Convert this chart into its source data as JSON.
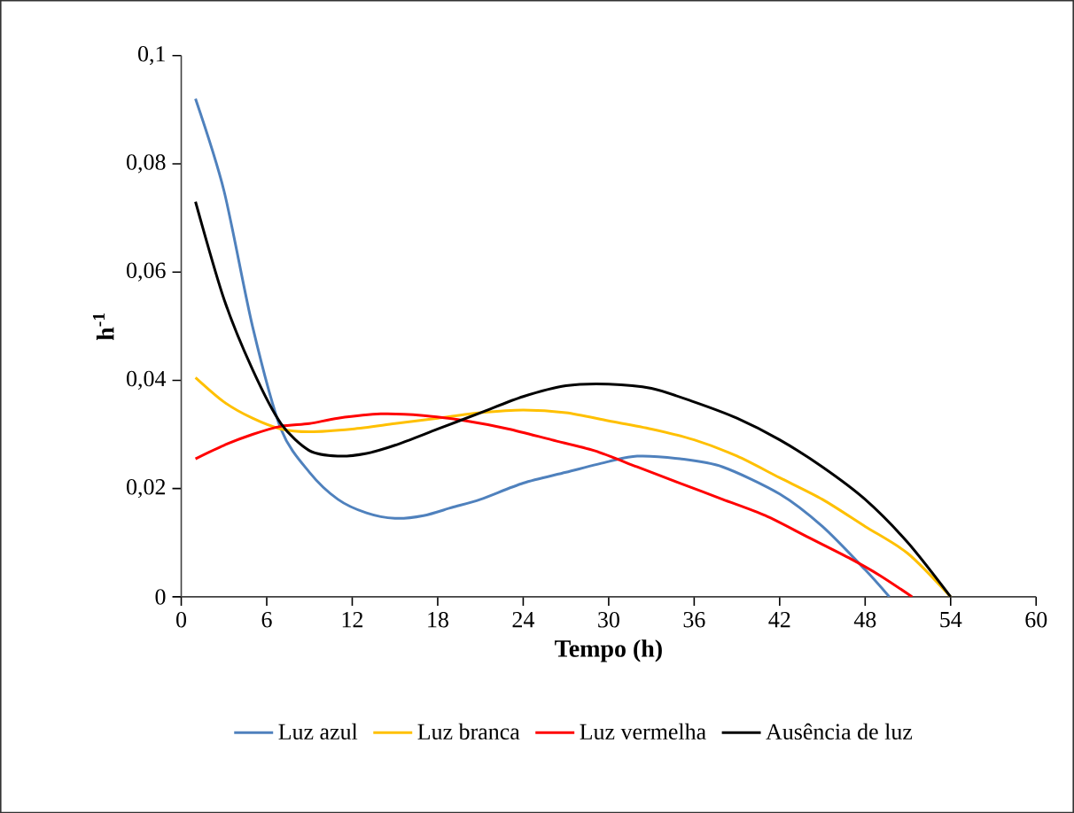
{
  "chart_data": {
    "type": "line",
    "xlabel": "Tempo (h)",
    "ylabel": "h$^{-1}$",
    "xlim": [
      0,
      60
    ],
    "xticks": [
      0,
      6,
      12,
      18,
      24,
      30,
      36,
      42,
      48,
      54,
      60
    ],
    "ylim": [
      0,
      0.1
    ],
    "yticks": [
      0,
      {
        "value": 0.02,
        "label": "0,02"
      },
      {
        "value": 0.04,
        "label": "0,04"
      },
      {
        "value": 0.06,
        "label": "0,06"
      },
      {
        "value": 0.08,
        "label": "0,08"
      },
      {
        "value": 0.1,
        "label": "0,1"
      }
    ],
    "grid": false,
    "legend": "bottom",
    "marker": "none",
    "line_style": "solid",
    "series": [
      {
        "name": "Luz azul",
        "color": "#4f81bd",
        "x": [
          1,
          3,
          5,
          7,
          9,
          11,
          13,
          15,
          17,
          19,
          21,
          24,
          27,
          30,
          32,
          35,
          38,
          42,
          45,
          48,
          49.7
        ],
        "values": [
          0.092,
          0.075,
          0.05,
          0.031,
          0.023,
          0.018,
          0.0155,
          0.0145,
          0.015,
          0.0165,
          0.018,
          0.021,
          0.023,
          0.025,
          0.026,
          0.0255,
          0.024,
          0.019,
          0.013,
          0.005,
          0
        ]
      },
      {
        "name": "Luz branca",
        "color": "#ffc000",
        "x": [
          1,
          3,
          5,
          7,
          9,
          12,
          15,
          18,
          21,
          24,
          27,
          30,
          33,
          36,
          39,
          42,
          45,
          48,
          51,
          54
        ],
        "values": [
          0.0405,
          0.036,
          0.033,
          0.031,
          0.0305,
          0.031,
          0.032,
          0.033,
          0.034,
          0.0345,
          0.034,
          0.0325,
          0.031,
          0.029,
          0.026,
          0.022,
          0.018,
          0.013,
          0.008,
          0
        ]
      },
      {
        "name": "Luz vermelha",
        "color": "#ff0000",
        "x": [
          1,
          3,
          5,
          7,
          9,
          11,
          14,
          17,
          20,
          23,
          26,
          29,
          32,
          35,
          38,
          41,
          44,
          47,
          49,
          51.3
        ],
        "values": [
          0.0255,
          0.028,
          0.03,
          0.0315,
          0.032,
          0.033,
          0.0338,
          0.0335,
          0.0325,
          0.031,
          0.029,
          0.027,
          0.024,
          0.021,
          0.018,
          0.015,
          0.011,
          0.007,
          0.004,
          0
        ]
      },
      {
        "name": "Ausência de luz",
        "color": "#000000",
        "x": [
          1,
          3,
          5,
          7,
          9,
          11,
          13,
          15,
          18,
          21,
          24,
          27,
          30,
          33,
          36,
          39,
          42,
          45,
          48,
          51,
          54
        ],
        "values": [
          0.073,
          0.055,
          0.042,
          0.032,
          0.027,
          0.026,
          0.0265,
          0.028,
          0.031,
          0.034,
          0.037,
          0.039,
          0.0393,
          0.0385,
          0.036,
          0.033,
          0.029,
          0.024,
          0.018,
          0.01,
          0
        ]
      }
    ]
  }
}
